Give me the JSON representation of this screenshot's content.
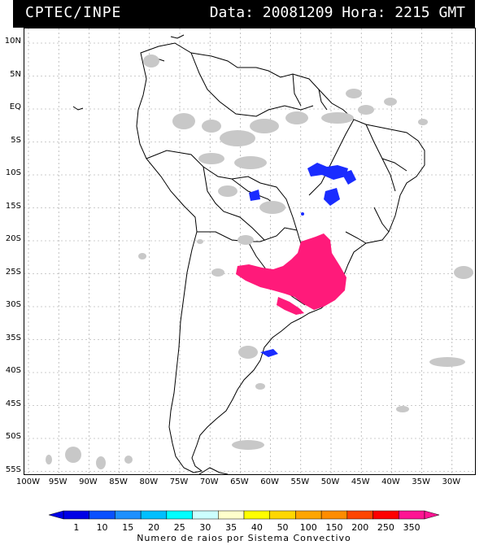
{
  "header": {
    "org": "CPTEC/INPE",
    "info": "Data: 20081209 Hora: 2215 GMT"
  },
  "map": {
    "lat_labels": [
      "10N",
      "5N",
      "EQ",
      "5S",
      "10S",
      "15S",
      "20S",
      "25S",
      "30S",
      "35S",
      "40S",
      "45S",
      "50S",
      "55S"
    ],
    "lon_labels": [
      "100W",
      "95W",
      "90W",
      "85W",
      "80W",
      "75W",
      "70W",
      "65W",
      "60W",
      "55W",
      "50W",
      "45W",
      "40W",
      "35W",
      "30W"
    ]
  },
  "legend": {
    "ticks": [
      "1",
      "10",
      "15",
      "20",
      "25",
      "30",
      "35",
      "40",
      "50",
      "100",
      "150",
      "200",
      "250",
      "350"
    ],
    "colors": [
      "#0000e6",
      "#0a50ff",
      "#1e90ff",
      "#00bfff",
      "#00ffff",
      "#ccffff",
      "#ffffcc",
      "#ffff00",
      "#ffd700",
      "#ffa500",
      "#ff8c00",
      "#ff4500",
      "#ff0000",
      "#ff1493"
    ],
    "title": "Numero de raios por Sistema Convectivo"
  },
  "colors": {
    "cloud": "#c8c8c8",
    "high_intensity": "#ff1a7a",
    "low_intensity": "#1a2cff",
    "header_bg": "#000000"
  }
}
